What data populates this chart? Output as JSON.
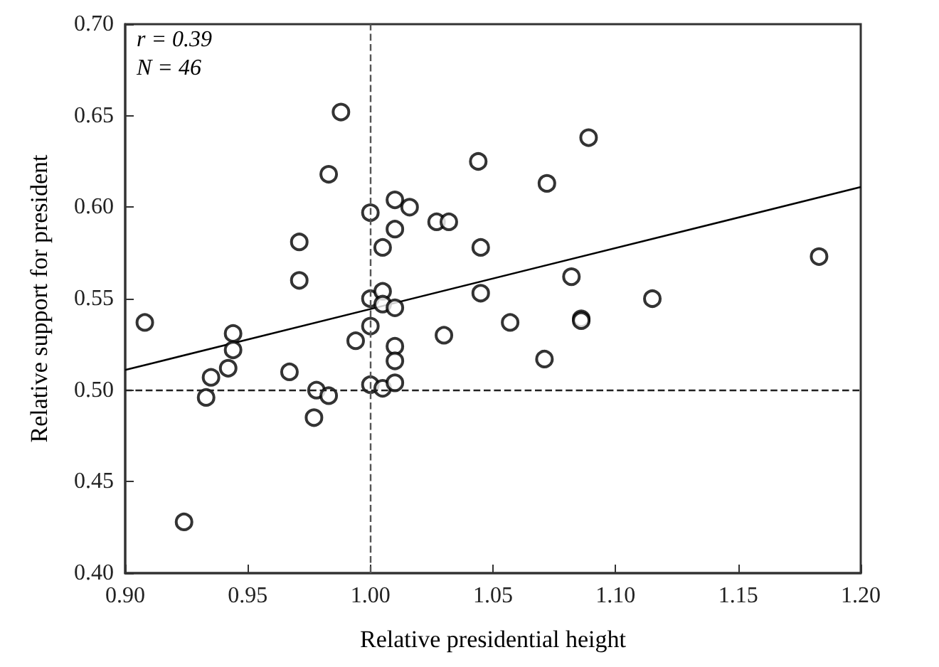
{
  "chart_data": {
    "type": "scatter",
    "xlabel": "Relative presidential height",
    "ylabel": "Relative support for president",
    "annotations": [
      "r = 0.39",
      "N = 46"
    ],
    "xlim": [
      0.9,
      1.2
    ],
    "xticks": [
      {
        "value": 0.9,
        "label": "0.90"
      },
      {
        "value": 0.95,
        "label": "0.95"
      },
      {
        "value": 1.0,
        "label": "1.00"
      },
      {
        "value": 1.05,
        "label": "1.05"
      },
      {
        "value": 1.1,
        "label": "1.10"
      },
      {
        "value": 1.15,
        "label": "1.15"
      },
      {
        "value": 1.2,
        "label": "1.20"
      }
    ],
    "ylim": [
      0.4,
      0.7
    ],
    "yticks": [
      {
        "value": 0.4,
        "label": "0.40"
      },
      {
        "value": 0.45,
        "label": "0.45"
      },
      {
        "value": 0.5,
        "label": "0.50"
      },
      {
        "value": 0.55,
        "label": "0.55"
      },
      {
        "value": 0.6,
        "label": "0.60"
      },
      {
        "value": 0.65,
        "label": "0.65"
      },
      {
        "value": 0.7,
        "label": "0.70"
      }
    ],
    "grid": false,
    "marker": "circle",
    "ref_lines": [
      {
        "axis": "x",
        "value": 1.0,
        "line_style": "dashed",
        "color": "#555555"
      },
      {
        "axis": "y",
        "value": 0.5,
        "line_style": "dashed",
        "color": "#222222"
      }
    ],
    "series": [
      {
        "color": "#000000",
        "x": [
          0.908,
          0.924,
          0.933,
          0.935,
          0.942,
          0.944,
          0.944,
          0.967,
          0.971,
          0.971,
          0.977,
          0.978,
          0.983,
          0.983,
          0.988,
          0.994,
          1.0,
          1.0,
          1.0,
          1.0,
          1.005,
          1.005,
          1.005,
          1.005,
          1.01,
          1.01,
          1.01,
          1.01,
          1.01,
          1.01,
          1.016,
          1.027,
          1.032,
          1.03,
          1.044,
          1.045,
          1.045,
          1.057,
          1.072,
          1.071,
          1.082,
          1.086,
          1.086,
          1.089,
          1.115,
          1.183
        ],
        "values": [
          0.537,
          0.428,
          0.496,
          0.507,
          0.512,
          0.531,
          0.522,
          0.51,
          0.581,
          0.56,
          0.485,
          0.5,
          0.497,
          0.618,
          0.652,
          0.527,
          0.597,
          0.55,
          0.535,
          0.503,
          0.578,
          0.554,
          0.547,
          0.501,
          0.604,
          0.588,
          0.545,
          0.524,
          0.516,
          0.504,
          0.6,
          0.592,
          0.592,
          0.53,
          0.625,
          0.578,
          0.553,
          0.537,
          0.613,
          0.517,
          0.562,
          0.539,
          0.538,
          0.638,
          0.55,
          0.573
        ]
      },
      {
        "type": "line",
        "color": "#000000",
        "marker": "none",
        "line_style": "solid",
        "x": [
          0.9,
          1.2
        ],
        "values": [
          0.511,
          0.611
        ]
      }
    ]
  }
}
